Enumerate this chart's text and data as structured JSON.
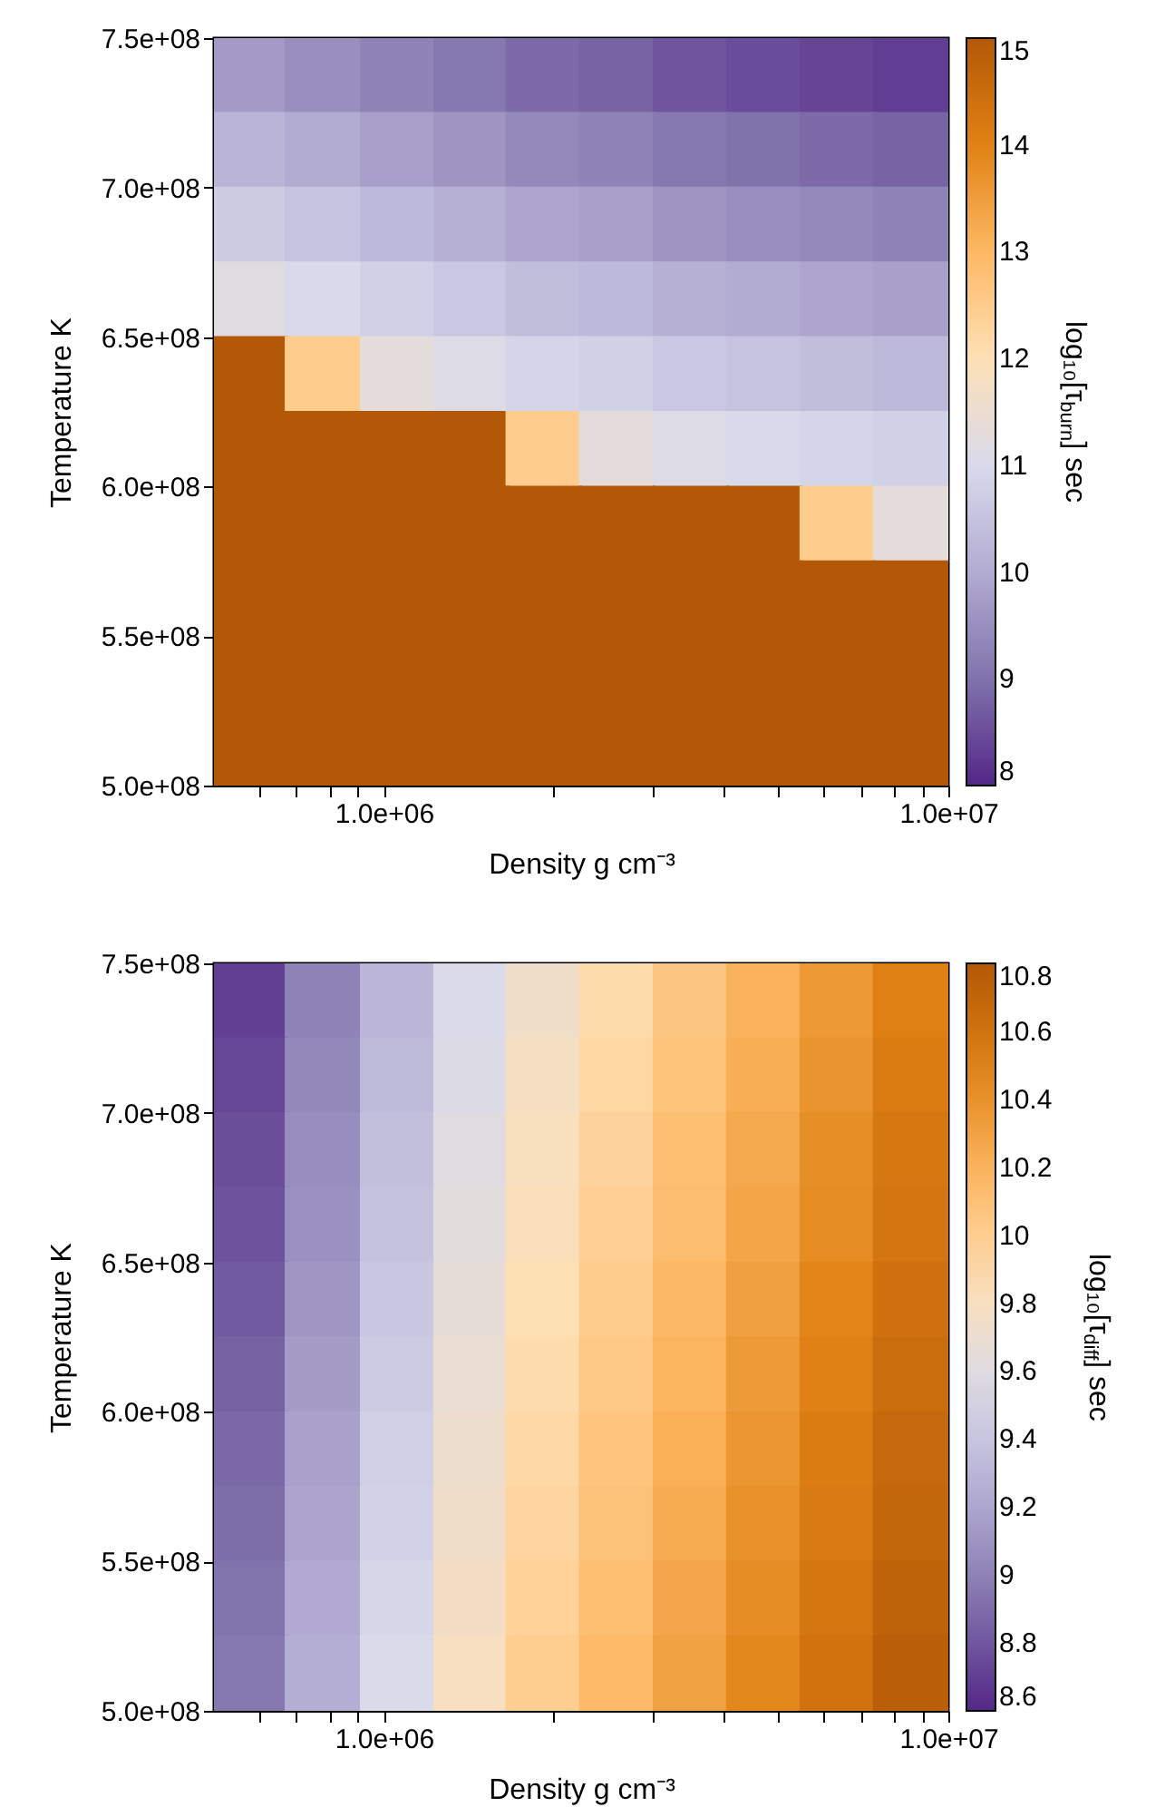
{
  "chart_data": [
    {
      "type": "scatter",
      "marker": "square",
      "xlabel": "Density g cm⁻³",
      "ylabel": "Temperature K",
      "clabel": "log₁₀[τ$_{burn}$] sec",
      "log": "x",
      "xlim": [
        500000,
        10000000
      ],
      "xticks": [
        {
          "value": 600000,
          "label": null
        },
        {
          "value": 700000,
          "label": null
        },
        {
          "value": 800000,
          "label": null
        },
        {
          "value": 900000,
          "label": null
        },
        {
          "value": 1000000,
          "label": "1.0e+06"
        },
        {
          "value": 2000000,
          "label": null
        },
        {
          "value": 3000000,
          "label": null
        },
        {
          "value": 4000000,
          "label": null
        },
        {
          "value": 5000000,
          "label": null
        },
        {
          "value": 6000000,
          "label": null
        },
        {
          "value": 7000000,
          "label": null
        },
        {
          "value": 8000000,
          "label": null
        },
        {
          "value": 9000000,
          "label": null
        },
        {
          "value": 10000000,
          "label": "1.0e+07"
        }
      ],
      "ylim": [
        500000000,
        750000000
      ],
      "yticks": [
        {
          "value": 500000000,
          "label": "5.0e+08"
        },
        {
          "value": 550000000,
          "label": "5.5e+08"
        },
        {
          "value": 600000000,
          "label": "6.0e+08"
        },
        {
          "value": 650000000,
          "label": "6.5e+08"
        },
        {
          "value": 700000000,
          "label": "7.0e+08"
        },
        {
          "value": 750000000,
          "label": "7.5e+08"
        }
      ],
      "clim": [
        8,
        15
      ],
      "cticks": [
        8,
        9,
        10,
        11,
        12,
        13,
        14,
        15
      ],
      "x": [
        580000,
        780000,
        1060000,
        1430000,
        1920000,
        2590000,
        3500000,
        4720000,
        6370000,
        8590000,
        580000,
        780000,
        1060000,
        1430000,
        1920000,
        2590000,
        3500000,
        4720000,
        6370000,
        8590000,
        580000,
        780000,
        1060000,
        1430000,
        1920000,
        2590000,
        3500000,
        4720000,
        6370000,
        8590000,
        580000,
        780000,
        1060000,
        1430000,
        1920000,
        2590000,
        3500000,
        4720000,
        6370000,
        8590000,
        580000,
        780000,
        1060000,
        1430000,
        1920000,
        2590000,
        3500000,
        4720000,
        6370000,
        8590000,
        580000,
        780000,
        1060000,
        1430000,
        1920000,
        2590000,
        3500000,
        4720000,
        6370000,
        8590000,
        580000,
        780000,
        1060000,
        1430000,
        1920000,
        2590000,
        3500000,
        4720000,
        6370000,
        8590000,
        580000,
        780000,
        1060000,
        1430000,
        1920000,
        2590000,
        3500000,
        4720000,
        6370000,
        8590000,
        580000,
        780000,
        1060000,
        1430000,
        1920000,
        2590000,
        3500000,
        4720000,
        6370000,
        8590000,
        580000,
        780000,
        1060000,
        1430000,
        1920000,
        2590000,
        3500000,
        4720000,
        6370000,
        8590000
      ],
      "values": [
        737500000,
        737500000,
        737500000,
        737500000,
        737500000,
        737500000,
        737500000,
        737500000,
        737500000,
        737500000,
        712500000,
        712500000,
        712500000,
        712500000,
        712500000,
        712500000,
        712500000,
        712500000,
        712500000,
        712500000,
        687500000,
        687500000,
        687500000,
        687500000,
        687500000,
        687500000,
        687500000,
        687500000,
        687500000,
        687500000,
        662500000,
        662500000,
        662500000,
        662500000,
        662500000,
        662500000,
        662500000,
        662500000,
        662500000,
        662500000,
        637500000,
        637500000,
        637500000,
        637500000,
        637500000,
        637500000,
        637500000,
        637500000,
        637500000,
        637500000,
        612500000,
        612500000,
        612500000,
        612500000,
        612500000,
        612500000,
        612500000,
        612500000,
        612500000,
        612500000,
        587500000,
        587500000,
        587500000,
        587500000,
        587500000,
        587500000,
        587500000,
        587500000,
        587500000,
        587500000,
        562500000,
        562500000,
        562500000,
        562500000,
        562500000,
        562500000,
        562500000,
        562500000,
        562500000,
        562500000,
        537500000,
        537500000,
        537500000,
        537500000,
        537500000,
        537500000,
        537500000,
        537500000,
        537500000,
        537500000,
        512500000,
        512500000,
        512500000,
        512500000,
        512500000,
        512500000,
        512500000,
        512500000,
        512500000,
        512500000
      ],
      "cvalues": [
        9.7,
        9.5,
        9.3,
        9.1,
        8.9,
        8.8,
        8.6,
        8.5,
        8.4,
        8.3,
        10.2,
        10.0,
        9.8,
        9.6,
        9.4,
        9.3,
        9.1,
        9.0,
        8.9,
        8.8,
        10.7,
        10.5,
        10.3,
        10.1,
        9.9,
        9.8,
        9.6,
        9.5,
        9.4,
        9.3,
        11.2,
        11.0,
        10.8,
        10.6,
        10.4,
        10.3,
        10.1,
        10.0,
        9.9,
        9.8,
        15,
        12.5,
        11.3,
        11.1,
        10.9,
        10.8,
        10.6,
        10.5,
        10.4,
        10.3,
        15,
        15,
        15,
        15,
        12.5,
        11.3,
        11.1,
        11.0,
        10.9,
        10.8,
        15,
        15,
        15,
        15,
        15,
        15,
        15,
        15,
        12.5,
        11.3,
        15,
        15,
        15,
        15,
        15,
        15,
        15,
        15,
        15,
        15,
        15,
        15,
        15,
        15,
        15,
        15,
        15,
        15,
        15,
        15,
        15,
        15,
        15,
        15,
        15,
        15,
        15,
        15,
        15,
        15
      ]
    },
    {
      "type": "scatter",
      "marker": "square",
      "xlabel": "Density g cm⁻³",
      "ylabel": "Temperature K",
      "clabel": "log₁₀[τ$_{diff}$] sec",
      "log": "x",
      "xlim": [
        500000,
        10000000
      ],
      "xticks": [
        {
          "value": 600000,
          "label": null
        },
        {
          "value": 700000,
          "label": null
        },
        {
          "value": 800000,
          "label": null
        },
        {
          "value": 900000,
          "label": null
        },
        {
          "value": 1000000,
          "label": "1.0e+06"
        },
        {
          "value": 2000000,
          "label": null
        },
        {
          "value": 3000000,
          "label": null
        },
        {
          "value": 4000000,
          "label": null
        },
        {
          "value": 5000000,
          "label": null
        },
        {
          "value": 6000000,
          "label": null
        },
        {
          "value": 7000000,
          "label": null
        },
        {
          "value": 8000000,
          "label": null
        },
        {
          "value": 9000000,
          "label": null
        },
        {
          "value": 10000000,
          "label": "1.0e+07"
        }
      ],
      "ylim": [
        500000000,
        750000000
      ],
      "yticks": [
        {
          "value": 500000000,
          "label": "5.0e+08"
        },
        {
          "value": 550000000,
          "label": "5.5e+08"
        },
        {
          "value": 600000000,
          "label": "6.0e+08"
        },
        {
          "value": 650000000,
          "label": "6.5e+08"
        },
        {
          "value": 700000000,
          "label": "7.0e+08"
        },
        {
          "value": 750000000,
          "label": "7.5e+08"
        }
      ],
      "clim": [
        8.6,
        10.8
      ],
      "cticks": [
        8.6,
        8.8,
        9,
        9.2,
        9.4,
        9.6,
        9.8,
        10,
        10.2,
        10.4,
        10.6,
        10.8
      ],
      "x": [
        580000,
        780000,
        1060000,
        1430000,
        1920000,
        2590000,
        3500000,
        4720000,
        6370000,
        8590000,
        580000,
        780000,
        1060000,
        1430000,
        1920000,
        2590000,
        3500000,
        4720000,
        6370000,
        8590000,
        580000,
        780000,
        1060000,
        1430000,
        1920000,
        2590000,
        3500000,
        4720000,
        6370000,
        8590000,
        580000,
        780000,
        1060000,
        1430000,
        1920000,
        2590000,
        3500000,
        4720000,
        6370000,
        8590000,
        580000,
        780000,
        1060000,
        1430000,
        1920000,
        2590000,
        3500000,
        4720000,
        6370000,
        8590000,
        580000,
        780000,
        1060000,
        1430000,
        1920000,
        2590000,
        3500000,
        4720000,
        6370000,
        8590000,
        580000,
        780000,
        1060000,
        1430000,
        1920000,
        2590000,
        3500000,
        4720000,
        6370000,
        8590000,
        580000,
        780000,
        1060000,
        1430000,
        1920000,
        2590000,
        3500000,
        4720000,
        6370000,
        8590000,
        580000,
        780000,
        1060000,
        1430000,
        1920000,
        2590000,
        3500000,
        4720000,
        6370000,
        8590000,
        580000,
        780000,
        1060000,
        1430000,
        1920000,
        2590000,
        3500000,
        4720000,
        6370000,
        8590000
      ],
      "values": [
        737500000,
        737500000,
        737500000,
        737500000,
        737500000,
        737500000,
        737500000,
        737500000,
        737500000,
        737500000,
        712500000,
        712500000,
        712500000,
        712500000,
        712500000,
        712500000,
        712500000,
        712500000,
        712500000,
        712500000,
        687500000,
        687500000,
        687500000,
        687500000,
        687500000,
        687500000,
        687500000,
        687500000,
        687500000,
        687500000,
        662500000,
        662500000,
        662500000,
        662500000,
        662500000,
        662500000,
        662500000,
        662500000,
        662500000,
        662500000,
        637500000,
        637500000,
        637500000,
        637500000,
        637500000,
        637500000,
        637500000,
        637500000,
        637500000,
        637500000,
        612500000,
        612500000,
        612500000,
        612500000,
        612500000,
        612500000,
        612500000,
        612500000,
        612500000,
        612500000,
        587500000,
        587500000,
        587500000,
        587500000,
        587500000,
        587500000,
        587500000,
        587500000,
        587500000,
        587500000,
        562500000,
        562500000,
        562500000,
        562500000,
        562500000,
        562500000,
        562500000,
        562500000,
        562500000,
        562500000,
        537500000,
        537500000,
        537500000,
        537500000,
        537500000,
        537500000,
        537500000,
        537500000,
        537500000,
        537500000,
        512500000,
        512500000,
        512500000,
        512500000,
        512500000,
        512500000,
        512500000,
        512500000,
        512500000,
        512500000
      ],
      "cvalues": [
        8.7,
        9.0,
        9.3,
        9.55,
        9.75,
        9.9,
        10.05,
        10.2,
        10.35,
        10.5,
        8.73,
        9.03,
        9.33,
        9.58,
        9.78,
        9.93,
        10.08,
        10.23,
        10.38,
        10.53,
        8.76,
        9.06,
        9.36,
        9.61,
        9.81,
        9.96,
        10.11,
        10.26,
        10.41,
        10.56,
        8.78,
        9.08,
        9.38,
        9.63,
        9.83,
        9.98,
        10.13,
        10.28,
        10.43,
        10.58,
        8.81,
        9.11,
        9.41,
        9.66,
        9.86,
        10.01,
        10.16,
        10.31,
        10.46,
        10.61,
        8.84,
        9.14,
        9.44,
        9.69,
        9.89,
        10.04,
        10.19,
        10.34,
        10.49,
        10.64,
        8.87,
        9.17,
        9.47,
        9.72,
        9.92,
        10.07,
        10.22,
        10.37,
        10.52,
        10.67,
        8.89,
        9.19,
        9.49,
        9.74,
        9.94,
        10.09,
        10.24,
        10.39,
        10.54,
        10.69,
        8.92,
        9.22,
        9.52,
        9.77,
        9.97,
        10.12,
        10.27,
        10.42,
        10.57,
        10.72,
        8.95,
        9.25,
        9.55,
        9.8,
        10.0,
        10.15,
        10.3,
        10.45,
        10.6,
        10.75
      ]
    }
  ]
}
